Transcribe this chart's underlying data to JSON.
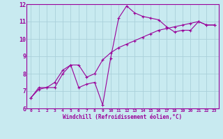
{
  "title": "",
  "xlabel": "Windchill (Refroidissement éolien,°C)",
  "ylabel": "",
  "bg_color": "#c8eaf0",
  "grid_color": "#aad0da",
  "line_color": "#990099",
  "xlim": [
    -0.5,
    23.5
  ],
  "ylim": [
    6,
    12
  ],
  "xticks": [
    0,
    1,
    2,
    3,
    4,
    5,
    6,
    7,
    8,
    9,
    10,
    11,
    12,
    13,
    14,
    15,
    16,
    17,
    18,
    19,
    20,
    21,
    22,
    23
  ],
  "yticks": [
    6,
    7,
    8,
    9,
    10,
    11,
    12
  ],
  "curve1_x": [
    0,
    1,
    2,
    3,
    4,
    5,
    6,
    7,
    8,
    9,
    10,
    11,
    12,
    13,
    14,
    15,
    16,
    17,
    18,
    19,
    20,
    21,
    22,
    23
  ],
  "curve1_y": [
    6.6,
    7.2,
    7.2,
    7.2,
    8.0,
    8.5,
    7.2,
    7.4,
    7.5,
    6.2,
    8.9,
    11.2,
    11.9,
    11.5,
    11.3,
    11.2,
    11.1,
    10.7,
    10.4,
    10.5,
    10.5,
    11.0,
    10.8,
    10.8
  ],
  "curve2_x": [
    0,
    1,
    2,
    3,
    4,
    5,
    6,
    7,
    8,
    9,
    10,
    11,
    12,
    13,
    14,
    15,
    16,
    17,
    18,
    19,
    20,
    21,
    22,
    23
  ],
  "curve2_y": [
    6.6,
    7.1,
    7.2,
    7.5,
    8.2,
    8.5,
    8.5,
    7.8,
    8.0,
    8.8,
    9.2,
    9.5,
    9.7,
    9.9,
    10.1,
    10.3,
    10.5,
    10.6,
    10.7,
    10.8,
    10.9,
    11.0,
    10.8,
    10.8
  ],
  "xlabel_fontsize": 5.5,
  "xtick_fontsize": 4.5,
  "ytick_fontsize": 6.0
}
